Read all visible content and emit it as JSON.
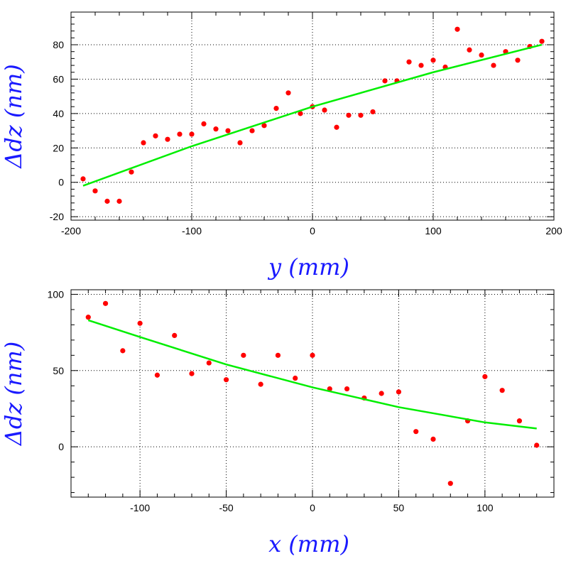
{
  "chart_data": [
    {
      "type": "scatter",
      "xlabel": "y (mm)",
      "ylabel": "Δdz (nm)",
      "xlim": [
        -200,
        200
      ],
      "ylim": [
        -22,
        99
      ],
      "xticks": [
        -200,
        -100,
        0,
        100,
        200
      ],
      "yticks": [
        -20,
        0,
        20,
        40,
        60,
        80
      ],
      "grid": true,
      "colors": {
        "points": "#ff0000",
        "fit": "#00ee00"
      },
      "series": [
        {
          "kind": "points",
          "x": [
            -190,
            -180,
            -170,
            -160,
            -150,
            -140,
            -130,
            -120,
            -110,
            -100,
            -90,
            -80,
            -70,
            -60,
            -50,
            -40,
            -30,
            -20,
            -10,
            0,
            10,
            20,
            30,
            40,
            50,
            60,
            70,
            80,
            90,
            100,
            110,
            120,
            130,
            140,
            150,
            160,
            170,
            180,
            190
          ],
          "y": [
            2,
            -5,
            -11,
            -11,
            6,
            23,
            27,
            25,
            28,
            28,
            34,
            31,
            30,
            23,
            30,
            33,
            43,
            52,
            40,
            44,
            42,
            32,
            39,
            39,
            41,
            59,
            59,
            70,
            68,
            71,
            67,
            89,
            77,
            74,
            68,
            76,
            71,
            79,
            82
          ]
        },
        {
          "kind": "fit",
          "x": [
            -190,
            -100,
            0,
            100,
            190
          ],
          "y": [
            -2,
            21,
            44,
            64,
            80
          ]
        }
      ]
    },
    {
      "type": "scatter",
      "xlabel": "x (mm)",
      "ylabel": "Δdz (nm)",
      "xlim": [
        -140,
        140
      ],
      "ylim": [
        -33,
        103
      ],
      "xticks": [
        -100,
        -50,
        0,
        50,
        100
      ],
      "yticks": [
        0,
        50,
        100
      ],
      "grid": true,
      "colors": {
        "points": "#ff0000",
        "fit": "#00ee00"
      },
      "series": [
        {
          "kind": "points",
          "x": [
            -130,
            -120,
            -110,
            -100,
            -90,
            -80,
            -70,
            -60,
            -50,
            -40,
            -30,
            -20,
            -10,
            0,
            10,
            20,
            30,
            40,
            50,
            60,
            70,
            80,
            90,
            100,
            110,
            120,
            130
          ],
          "y": [
            85,
            94,
            63,
            81,
            47,
            73,
            48,
            55,
            44,
            60,
            41,
            60,
            45,
            60,
            38,
            38,
            32,
            35,
            36,
            10,
            5,
            -24,
            17,
            46,
            37,
            17,
            1
          ]
        },
        {
          "kind": "fit",
          "x": [
            -130,
            -100,
            -50,
            0,
            50,
            100,
            130
          ],
          "y": [
            83,
            72,
            54,
            39,
            26,
            16,
            12
          ]
        }
      ]
    }
  ]
}
